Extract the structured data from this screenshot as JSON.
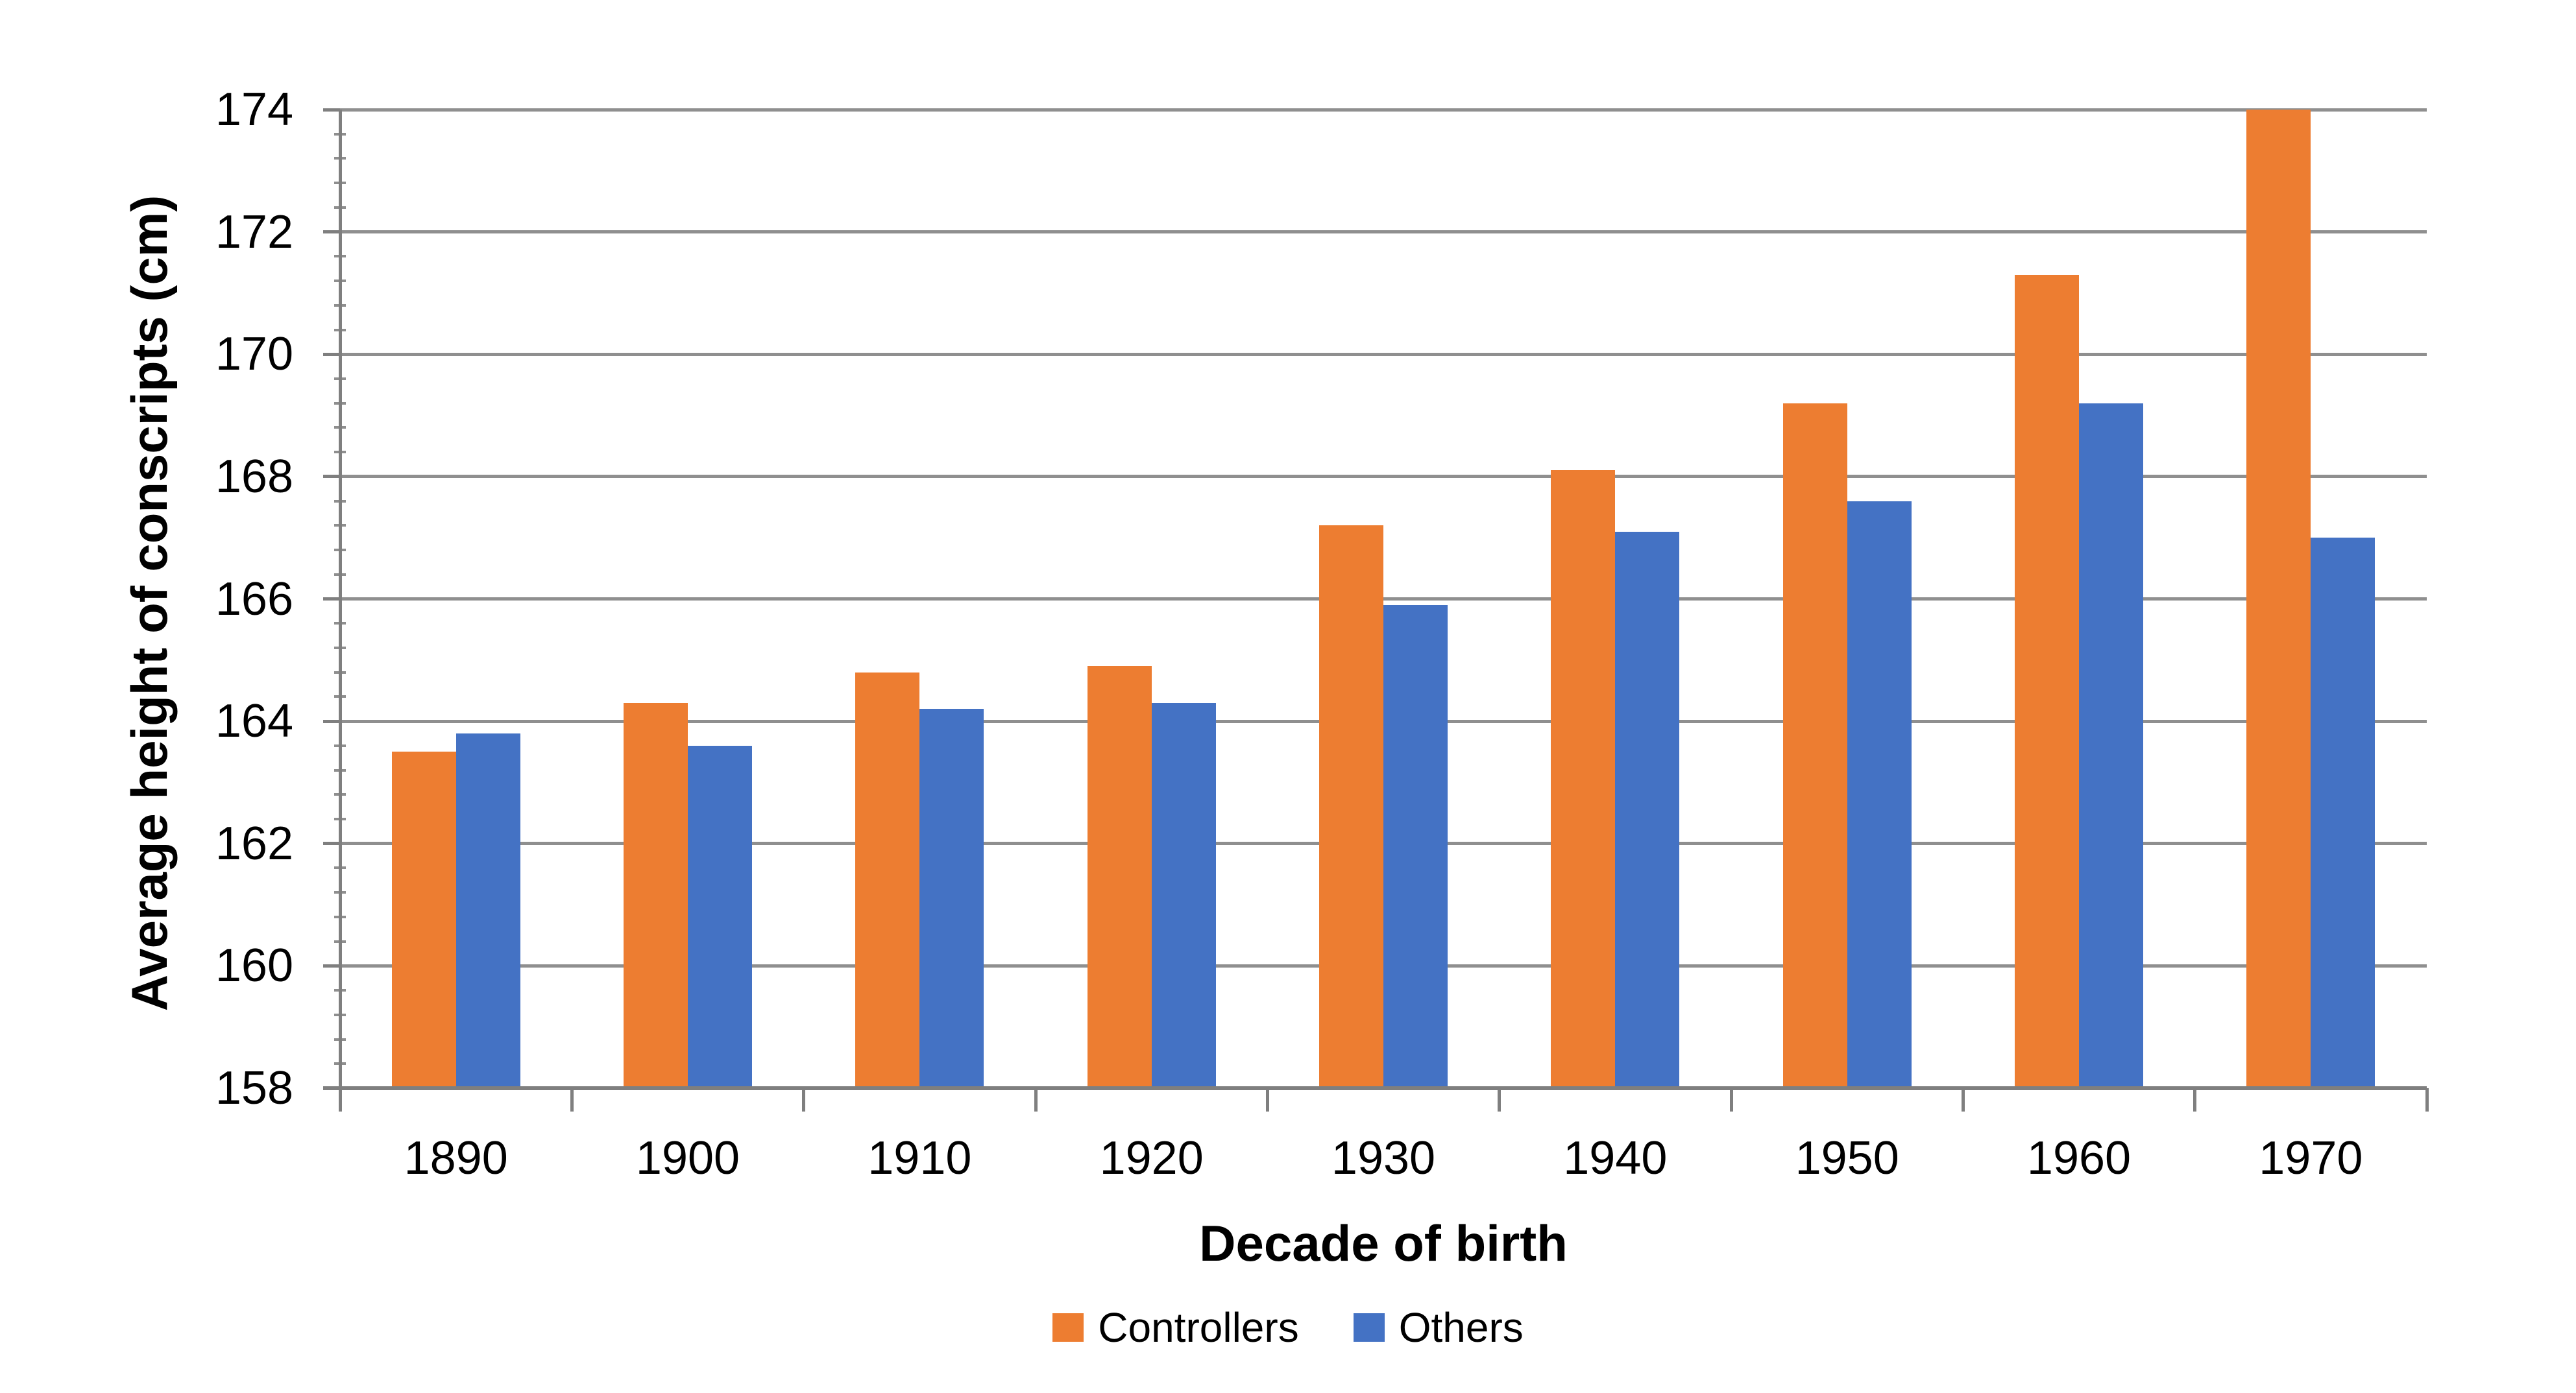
{
  "chart_data": {
    "type": "bar",
    "categories": [
      "1890",
      "1900",
      "1910",
      "1920",
      "1930",
      "1940",
      "1950",
      "1960",
      "1970"
    ],
    "series": [
      {
        "name": "Controllers",
        "color": "#ED7D31",
        "values": [
          163.5,
          164.3,
          164.8,
          164.9,
          167.2,
          168.1,
          169.2,
          171.3,
          174.0
        ]
      },
      {
        "name": "Others",
        "color": "#4472C4",
        "values": [
          163.8,
          163.6,
          164.2,
          164.3,
          165.9,
          167.1,
          167.6,
          169.2,
          167.0
        ]
      }
    ],
    "xlabel": "Decade of birth",
    "ylabel": "Average height of conscripts (cm)",
    "ylim": [
      158,
      174
    ],
    "ytick_step": 2,
    "yminor_step": 0.4,
    "grid": true,
    "legend_position": "bottom",
    "colors": {
      "gridline": "#8F8F8F",
      "axis": "#7F7F7F",
      "text": "#000000",
      "background": "#FFFFFF"
    }
  }
}
